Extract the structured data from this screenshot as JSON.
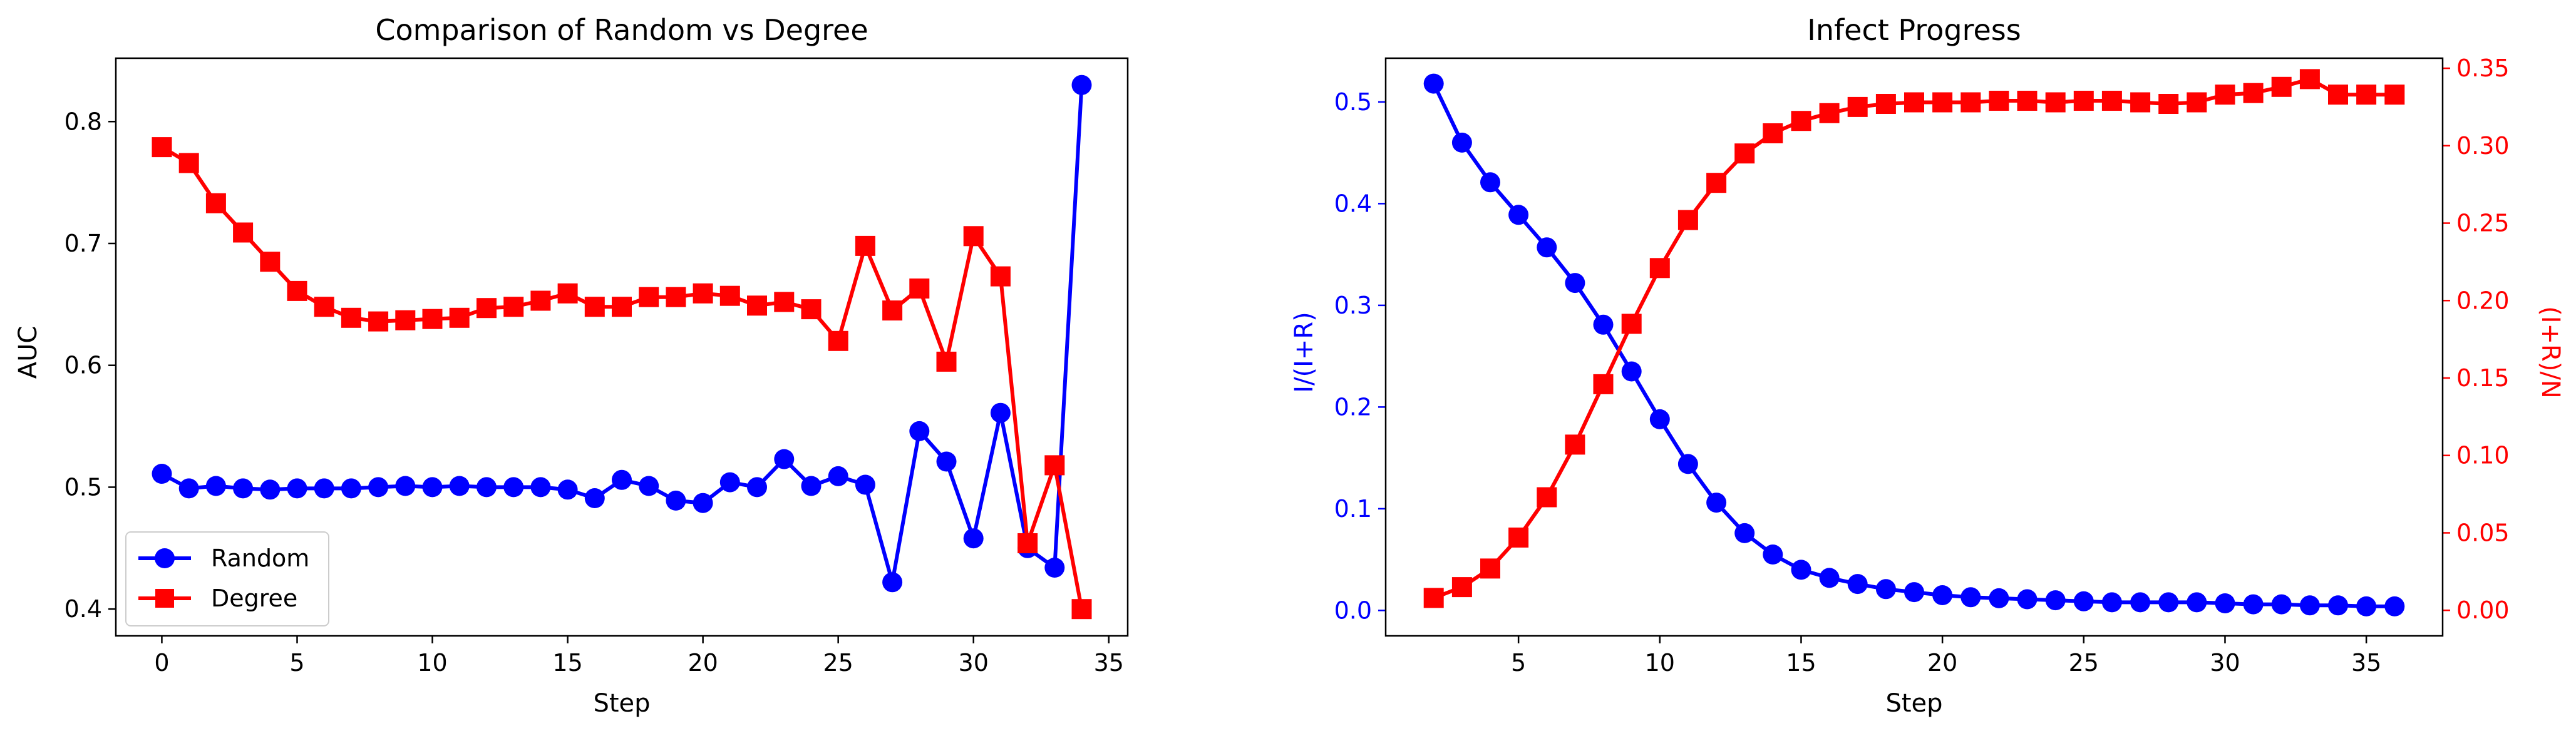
{
  "colors": {
    "random": "#0000ff",
    "degree": "#ff0000",
    "text": "#000000"
  },
  "chart_data": [
    {
      "type": "line",
      "title": "Comparison of Random vs Degree",
      "xlabel": "Step",
      "ylabel": "AUC",
      "xlim": [
        -1.7,
        35.7
      ],
      "ylim": [
        0.378,
        0.852
      ],
      "xticks": [
        0,
        5,
        10,
        15,
        20,
        25,
        30,
        35
      ],
      "xtick_labels": [
        "0",
        "5",
        "10",
        "15",
        "20",
        "25",
        "30",
        "35"
      ],
      "yticks": [
        0.4,
        0.5,
        0.6,
        0.7,
        0.8
      ],
      "ytick_labels": [
        "0.4",
        "0.5",
        "0.6",
        "0.7",
        "0.8"
      ],
      "legend": "lower-left",
      "grid": false,
      "x": [
        0,
        1,
        2,
        3,
        4,
        5,
        6,
        7,
        8,
        9,
        10,
        11,
        12,
        13,
        14,
        15,
        16,
        17,
        18,
        19,
        20,
        21,
        22,
        23,
        24,
        25,
        26,
        27,
        28,
        29,
        30,
        31,
        32,
        33,
        34
      ],
      "series": [
        {
          "name": "Random",
          "color": "#0000ff",
          "marker": "circle",
          "values": [
            0.511,
            0.499,
            0.501,
            0.499,
            0.498,
            0.499,
            0.499,
            0.499,
            0.5,
            0.501,
            0.5,
            0.501,
            0.5,
            0.5,
            0.5,
            0.498,
            0.491,
            0.506,
            0.501,
            0.489,
            0.487,
            0.504,
            0.5,
            0.523,
            0.501,
            0.509,
            0.502,
            0.422,
            0.546,
            0.521,
            0.458,
            0.561,
            0.45,
            0.434,
            0.83
          ]
        },
        {
          "name": "Degree",
          "color": "#ff0000",
          "marker": "square",
          "values": [
            0.779,
            0.766,
            0.733,
            0.709,
            0.685,
            0.661,
            0.648,
            0.639,
            0.636,
            0.637,
            0.638,
            0.639,
            0.647,
            0.648,
            0.653,
            0.659,
            0.648,
            0.648,
            0.656,
            0.656,
            0.659,
            0.657,
            0.649,
            0.652,
            0.646,
            0.62,
            0.698,
            0.645,
            0.663,
            0.603,
            0.706,
            0.673,
            0.454,
            0.518,
            0.4
          ]
        }
      ]
    },
    {
      "type": "line",
      "title": "Infect Progress",
      "xlabel": "Step",
      "ylabel": "I/(I+R)",
      "y2label": "(I+R)/N",
      "xlim": [
        0.3,
        37.7
      ],
      "ylim": [
        -0.025,
        0.543
      ],
      "y2lim": [
        -0.0165,
        0.3565
      ],
      "xticks": [
        5,
        10,
        15,
        20,
        25,
        30,
        35
      ],
      "xtick_labels": [
        "5",
        "10",
        "15",
        "20",
        "25",
        "30",
        "35"
      ],
      "yticks": [
        0.0,
        0.1,
        0.2,
        0.3,
        0.4,
        0.5
      ],
      "ytick_labels": [
        "0.0",
        "0.1",
        "0.2",
        "0.3",
        "0.4",
        "0.5"
      ],
      "y2ticks": [
        0.0,
        0.05,
        0.1,
        0.15,
        0.2,
        0.25,
        0.3,
        0.35
      ],
      "y2tick_labels": [
        "0.00",
        "0.05",
        "0.10",
        "0.15",
        "0.20",
        "0.25",
        "0.30",
        "0.35"
      ],
      "grid": false,
      "x": [
        2,
        3,
        4,
        5,
        6,
        7,
        8,
        9,
        10,
        11,
        12,
        13,
        14,
        15,
        16,
        17,
        18,
        19,
        20,
        21,
        22,
        23,
        24,
        25,
        26,
        27,
        28,
        29,
        30,
        31,
        32,
        33,
        34,
        35,
        36
      ],
      "series": [
        {
          "axis": "left",
          "color": "#0000ff",
          "marker": "circle",
          "values": [
            0.518,
            0.46,
            0.421,
            0.389,
            0.357,
            0.322,
            0.281,
            0.235,
            0.188,
            0.144,
            0.106,
            0.076,
            0.055,
            0.04,
            0.032,
            0.026,
            0.021,
            0.018,
            0.015,
            0.013,
            0.012,
            0.011,
            0.01,
            0.009,
            0.008,
            0.008,
            0.008,
            0.008,
            0.007,
            0.006,
            0.006,
            0.005,
            0.005,
            0.004,
            0.004
          ]
        },
        {
          "axis": "right",
          "color": "#ff0000",
          "marker": "square",
          "values": [
            0.008,
            0.015,
            0.027,
            0.047,
            0.073,
            0.107,
            0.146,
            0.185,
            0.221,
            0.252,
            0.276,
            0.295,
            0.308,
            0.316,
            0.321,
            0.325,
            0.327,
            0.328,
            0.328,
            0.328,
            0.329,
            0.329,
            0.328,
            0.329,
            0.329,
            0.328,
            0.327,
            0.328,
            0.333,
            0.334,
            0.338,
            0.343,
            0.333,
            0.333,
            0.333
          ]
        }
      ]
    }
  ]
}
